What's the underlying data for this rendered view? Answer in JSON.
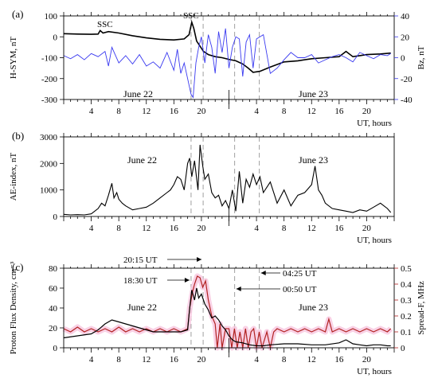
{
  "chart_data": [
    {
      "panel": "(a)",
      "type": "line",
      "xlabel": "UT, hours",
      "x_ticks": [
        "4",
        "8",
        "12",
        "16",
        "20",
        "0",
        "4",
        "8",
        "12",
        "16",
        "20"
      ],
      "xlim": [
        0,
        48
      ],
      "ylabel_left": "H-SYM, nT",
      "ylim_left": [
        -300,
        100
      ],
      "yticks_left": [
        "100",
        "0",
        "-100",
        "-200",
        "-300"
      ],
      "ylabel_right": "Bz, nT",
      "ylim_right": [
        -40,
        40
      ],
      "yticks_right": [
        "40",
        "20",
        "0",
        "-20",
        "-40"
      ],
      "day_labels": [
        "June 22",
        "June 23"
      ],
      "annotations": [
        "SSC",
        "SSC"
      ],
      "series": [
        {
          "axis": "left",
          "color": "#000000",
          "x": [
            0,
            2,
            4,
            5,
            5.3,
            5.7,
            6.5,
            8,
            10,
            12,
            14,
            16,
            17.5,
            18.2,
            18.6,
            18.9,
            19.3,
            19.8,
            20.3,
            21,
            22,
            23,
            24,
            25,
            26,
            26.8,
            27.5,
            28.5,
            30,
            32,
            34,
            36,
            38,
            40,
            41,
            42,
            43,
            44,
            46,
            47.5
          ],
          "y": [
            15,
            13,
            12,
            13,
            30,
            18,
            25,
            18,
            5,
            -5,
            -12,
            -15,
            -10,
            10,
            70,
            40,
            -20,
            -45,
            -70,
            -85,
            -95,
            -100,
            -108,
            -115,
            -130,
            -150,
            -170,
            -165,
            -145,
            -120,
            -115,
            -105,
            -100,
            -95,
            -70,
            -95,
            -90,
            -85,
            -82,
            -78
          ]
        },
        {
          "axis": "right",
          "color": "#3a3af0",
          "x": [
            0,
            1,
            2,
            3,
            4,
            5,
            6,
            6.5,
            7,
            8,
            9,
            10,
            11,
            12,
            13,
            14,
            15,
            16,
            16.5,
            17,
            17.5,
            18,
            18.5,
            18.8,
            19.2,
            19.6,
            20,
            20.5,
            21,
            21.5,
            22,
            22.5,
            23,
            23.5,
            24,
            24.5,
            25,
            25.5,
            26,
            26.5,
            27,
            27.5,
            28,
            29,
            30,
            31,
            32,
            33,
            34,
            35,
            36,
            37,
            38,
            39,
            40,
            41,
            42,
            43,
            44,
            45,
            46,
            47,
            47.5
          ],
          "y": [
            2,
            -1,
            3,
            -2,
            4,
            1,
            6,
            -8,
            10,
            -5,
            2,
            -6,
            3,
            -8,
            -4,
            -10,
            5,
            -12,
            8,
            -15,
            -5,
            -20,
            -35,
            -38,
            -5,
            10,
            20,
            -5,
            22,
            10,
            -15,
            25,
            5,
            28,
            -10,
            10,
            20,
            18,
            -18,
            15,
            22,
            -10,
            18,
            22,
            -15,
            -10,
            -2,
            5,
            0,
            0,
            3,
            -5,
            -2,
            1,
            3,
            0,
            -4,
            5,
            2,
            -1,
            3,
            2,
            4
          ]
        }
      ]
    },
    {
      "panel": "(b)",
      "type": "line",
      "xlabel": "UT, hours",
      "x_ticks": [
        "4",
        "8",
        "12",
        "16",
        "20",
        "0",
        "4",
        "8",
        "12",
        "16",
        "20"
      ],
      "xlim": [
        0,
        48
      ],
      "ylabel": "AE-index, nT",
      "ylim": [
        0,
        3000
      ],
      "yticks": [
        "3000",
        "2000",
        "1000",
        "0"
      ],
      "day_labels": [
        "June 22",
        "June 23"
      ],
      "series": [
        {
          "color": "#000000",
          "x": [
            0,
            1,
            2,
            3,
            4,
            5,
            5.5,
            6,
            6.5,
            7,
            7.3,
            7.7,
            8,
            8.5,
            9,
            10,
            11,
            12,
            13,
            14,
            15,
            15.5,
            16,
            16.5,
            17,
            17.5,
            18,
            18.3,
            18.6,
            19,
            19.5,
            19.8,
            20.2,
            20.5,
            21,
            21.5,
            22,
            22.5,
            23,
            23.5,
            24,
            24.5,
            25,
            25.5,
            26,
            26.5,
            27,
            27.5,
            28,
            28.5,
            29,
            30,
            31,
            32,
            33,
            33.5,
            34,
            35,
            36,
            36.5,
            37,
            37.5,
            38,
            39,
            40,
            41,
            42,
            43,
            44,
            45,
            46,
            47,
            47.5
          ],
          "y": [
            80,
            60,
            70,
            60,
            100,
            300,
            500,
            400,
            800,
            1250,
            700,
            900,
            650,
            500,
            400,
            250,
            300,
            350,
            500,
            700,
            900,
            1000,
            1200,
            1500,
            1400,
            1000,
            2000,
            2200,
            1500,
            2100,
            1000,
            2700,
            1900,
            1400,
            1600,
            900,
            700,
            800,
            400,
            600,
            300,
            1000,
            200,
            1700,
            500,
            1400,
            1100,
            1600,
            1200,
            1500,
            900,
            1300,
            500,
            1000,
            400,
            600,
            800,
            900,
            1200,
            1900,
            1000,
            800,
            500,
            300,
            250,
            200,
            150,
            250,
            200,
            350,
            500,
            300,
            150
          ]
        }
      ]
    },
    {
      "panel": "(c)",
      "type": "line",
      "xlabel": "UT, hours",
      "x_ticks": [
        "4",
        "8",
        "12",
        "16",
        "20",
        "0",
        "4",
        "8",
        "12",
        "16",
        "20"
      ],
      "xlim": [
        0,
        48
      ],
      "ylabel_left": "Proton Flux Density, cm⁻³",
      "ylim_left": [
        0,
        80
      ],
      "yticks_left": [
        "80",
        "60",
        "40",
        "20",
        "0"
      ],
      "ylabel_right": "Spread-F, MHz",
      "ylim_right": [
        0,
        0.5
      ],
      "yticks_right": [
        "0.5",
        "0.4",
        "0.3",
        "0.2",
        "0.1",
        "0"
      ],
      "day_labels": [
        "June 22",
        "June 23"
      ],
      "annotations": [
        "20:15 UT",
        "18:30 UT",
        "04:25 UT",
        "00:50 UT"
      ],
      "event_times_hours": [
        18.5,
        20.25,
        24.833,
        28.417
      ],
      "series": [
        {
          "axis": "left",
          "color": "#000000",
          "x": [
            0,
            2,
            4,
            5,
            6,
            7,
            8,
            9,
            10,
            11,
            12,
            13,
            14,
            15,
            16,
            17,
            18,
            18.3,
            18.6,
            19,
            19.3,
            19.6,
            20,
            20.5,
            21,
            21.5,
            22,
            22.5,
            23,
            23.5,
            24,
            24.5,
            25,
            26,
            27,
            28,
            29,
            30,
            32,
            34,
            36,
            38,
            40,
            41,
            41.5,
            42,
            43,
            44,
            45,
            46,
            47,
            47.5
          ],
          "y": [
            10,
            12,
            14,
            18,
            24,
            28,
            26,
            24,
            22,
            20,
            18,
            16,
            16,
            16,
            16,
            16,
            18,
            40,
            58,
            48,
            60,
            50,
            54,
            44,
            38,
            30,
            32,
            28,
            22,
            18,
            12,
            8,
            6,
            5,
            3,
            2,
            2,
            3,
            4,
            4,
            3,
            3,
            5,
            8,
            6,
            4,
            3,
            2,
            3,
            3,
            2,
            2
          ]
        },
        {
          "axis": "right",
          "color": "#b22222",
          "x": [
            0,
            1,
            2,
            3,
            4,
            5,
            6,
            7,
            8,
            9,
            10,
            11,
            12,
            13,
            14,
            15,
            16,
            17,
            18,
            18.3,
            18.7,
            19,
            19.4,
            19.8,
            20.2,
            20.6,
            21,
            21.5,
            22,
            22.3,
            22.7,
            23,
            23.5,
            24,
            24.4,
            24.8,
            25.2,
            25.6,
            26,
            26.4,
            26.8,
            27.2,
            27.6,
            28,
            28.4,
            28.8,
            29.5,
            30,
            30.5,
            31,
            32,
            33,
            34,
            35,
            36,
            37,
            38,
            38.5,
            39,
            40,
            41,
            42,
            43,
            44,
            45,
            46,
            47,
            47.5
          ],
          "y": [
            0.12,
            0.1,
            0.13,
            0.1,
            0.12,
            0.1,
            0.12,
            0.1,
            0.13,
            0.1,
            0.12,
            0.1,
            0.12,
            0.1,
            0.12,
            0.1,
            0.12,
            0.1,
            0.12,
            0.25,
            0.35,
            0.4,
            0.45,
            0.44,
            0.38,
            0.42,
            0.3,
            0.2,
            0.15,
            0,
            0.15,
            0,
            0.12,
            0.12,
            0,
            0.12,
            0,
            0.1,
            0,
            0.12,
            0,
            0.1,
            0.12,
            0,
            0.1,
            0,
            0.1,
            0,
            0.1,
            0.12,
            0.1,
            0.12,
            0.1,
            0.12,
            0.1,
            0.12,
            0.1,
            0.18,
            0.1,
            0.12,
            0.1,
            0.12,
            0.1,
            0.12,
            0.1,
            0.12,
            0.1,
            0.12
          ]
        }
      ]
    }
  ],
  "colors": {
    "black": "#000000",
    "blue": "#3a3af0",
    "red": "#b22222",
    "pink_band": "#f7c6de"
  }
}
